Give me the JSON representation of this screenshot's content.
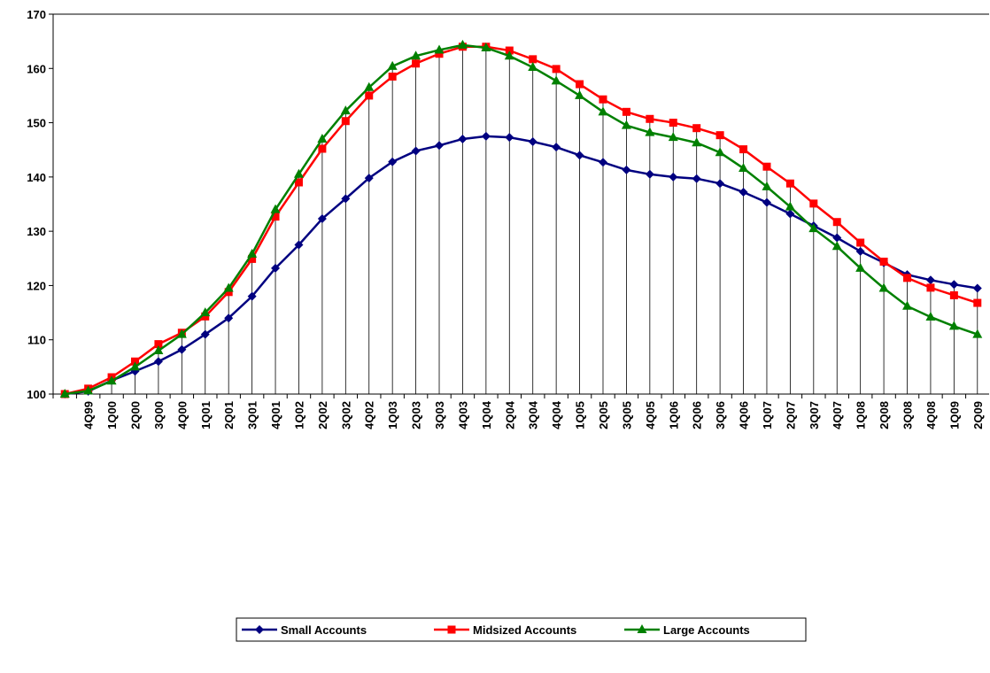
{
  "chart_data": {
    "type": "line",
    "categories": [
      null,
      "4Q99",
      "1Q00",
      "2Q00",
      "3Q00",
      "4Q00",
      "1Q01",
      "2Q01",
      "3Q01",
      "4Q01",
      "1Q02",
      "2Q02",
      "3Q02",
      "4Q02",
      "1Q03",
      "2Q03",
      "3Q03",
      "4Q03",
      "1Q04",
      "2Q04",
      "3Q04",
      "4Q04",
      "1Q05",
      "2Q05",
      "3Q05",
      "4Q05",
      "1Q06",
      "2Q06",
      "3Q06",
      "4Q06",
      "1Q07",
      "2Q07",
      "3Q07",
      "4Q07",
      "1Q08",
      "2Q08",
      "3Q08",
      "4Q08",
      "1Q09",
      "2Q09"
    ],
    "series": [
      {
        "name": "Small Accounts",
        "color": "#000080",
        "marker": "diamond",
        "values": [
          100,
          100.5,
          102.5,
          104.2,
          106,
          108.2,
          111,
          114,
          118,
          123.2,
          127.5,
          132.3,
          136,
          139.8,
          142.8,
          144.8,
          145.8,
          147,
          147.5,
          147.3,
          146.5,
          145.5,
          144,
          142.7,
          141.3,
          140.5,
          140,
          139.7,
          138.8,
          137.2,
          135.3,
          133.2,
          131,
          128.8,
          126.3,
          124.2,
          122,
          121,
          120.2,
          119.5
        ]
      },
      {
        "name": "Midsized Accounts",
        "color": "#ff0000",
        "marker": "square",
        "values": [
          100,
          101,
          103.1,
          106,
          109.2,
          111.3,
          114.3,
          118.8,
          124.9,
          132.7,
          139,
          145.2,
          150.3,
          155,
          158.5,
          160.9,
          162.7,
          164,
          164,
          163.3,
          161.7,
          159.9,
          157.1,
          154.3,
          152,
          150.7,
          150,
          149,
          147.7,
          145.1,
          141.9,
          138.8,
          135.1,
          131.7,
          127.9,
          124.4,
          121.4,
          119.6,
          118.2,
          116.8
        ]
      },
      {
        "name": "Large Accounts",
        "color": "#008000",
        "marker": "triangle",
        "values": [
          100,
          100.6,
          102.4,
          105,
          108,
          111,
          115,
          119.5,
          125.8,
          134,
          140.5,
          147,
          152.2,
          156.5,
          160.4,
          162.3,
          163.4,
          164.3,
          163.8,
          162.3,
          160.2,
          157.7,
          155,
          152,
          149.5,
          148.2,
          147.3,
          146.3,
          144.5,
          141.6,
          138.2,
          134.5,
          130.5,
          127.2,
          123.2,
          119.5,
          116.2,
          114.2,
          112.5,
          111
        ]
      }
    ],
    "ylim": [
      100,
      170
    ],
    "yticks": [
      100,
      110,
      120,
      130,
      140,
      150,
      160,
      170
    ],
    "drop_lines": true,
    "legend": "bottom"
  }
}
